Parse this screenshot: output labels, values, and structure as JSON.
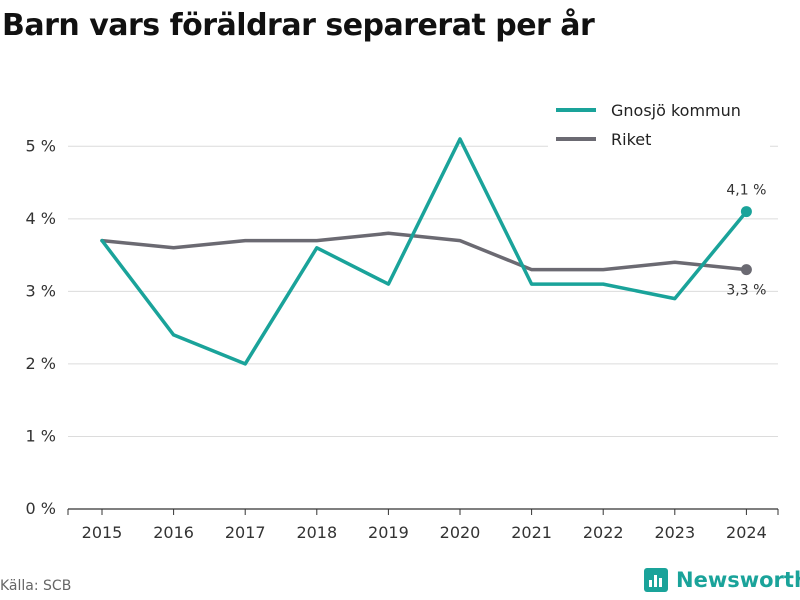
{
  "title": "Barn vars föräldrar separerat per år",
  "source": "Källa: SCB",
  "brand": {
    "name": "Newsworthy",
    "icon": "newsworthy-logo-icon",
    "color": "#1aa39a"
  },
  "chart_data": {
    "type": "line",
    "title": "Barn vars föräldrar separerat per år",
    "xlabel": "",
    "ylabel": "",
    "x": [
      "2015",
      "2016",
      "2017",
      "2018",
      "2019",
      "2020",
      "2021",
      "2022",
      "2023",
      "2024"
    ],
    "yticks": [
      "0 %",
      "1 %",
      "2 %",
      "3 %",
      "4 %",
      "5 %"
    ],
    "ylim": [
      0,
      5.5
    ],
    "grid": true,
    "legend_position": "top-right",
    "series": [
      {
        "name": "Gnosjö kommun",
        "color": "#1aa39a",
        "values": [
          3.7,
          2.4,
          2.0,
          3.6,
          3.1,
          5.1,
          3.1,
          3.1,
          2.9,
          4.1
        ],
        "end_label": "4,1 %"
      },
      {
        "name": "Riket",
        "color": "#6b6a72",
        "values": [
          3.7,
          3.6,
          3.7,
          3.7,
          3.8,
          3.7,
          3.3,
          3.3,
          3.4,
          3.3
        ],
        "end_label": "3,3 %"
      }
    ]
  }
}
